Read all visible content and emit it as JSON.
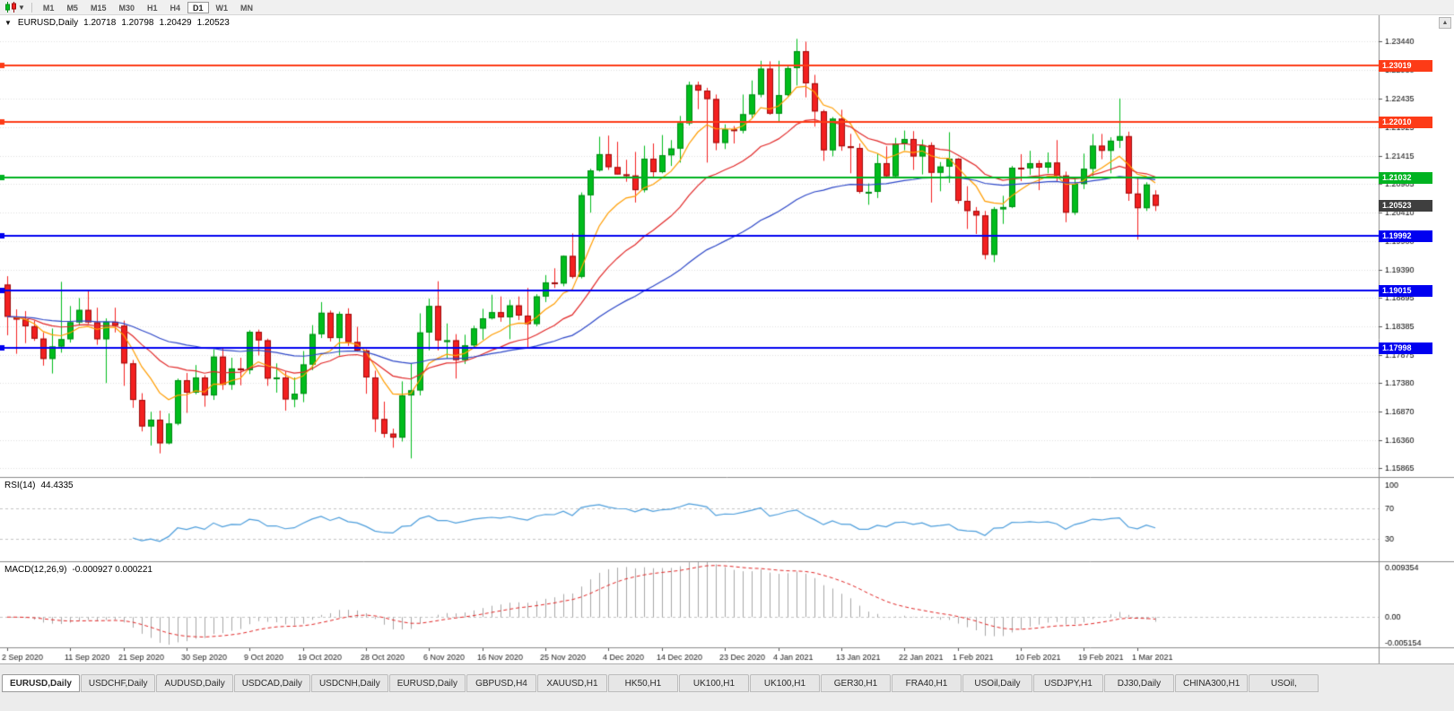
{
  "toolbar": {
    "timeframes": [
      "M1",
      "M5",
      "M15",
      "M30",
      "H1",
      "H4",
      "D1",
      "W1",
      "MN"
    ],
    "active_timeframe": "D1"
  },
  "chart_header": {
    "symbol": "EURUSD,Daily",
    "open": "1.20718",
    "high": "1.20798",
    "low": "1.20429",
    "close": "1.20523"
  },
  "indicators": {
    "rsi": {
      "label": "RSI(14)",
      "value": "44.4335"
    },
    "macd": {
      "label": "MACD(12,26,9)",
      "value": "-0.000927 0.000221"
    }
  },
  "scroll_up_glyph": "▲",
  "tabs": {
    "active_index": 0,
    "items": [
      "EURUSD,Daily",
      "USDCHF,Daily",
      "AUDUSD,Daily",
      "USDCAD,Daily",
      "USDCNH,Daily",
      "EURUSD,Daily",
      "GBPUSD,H4",
      "XAUUSD,H1",
      "HK50,H1",
      "UK100,H1",
      "UK100,H1",
      "GER30,H1",
      "FRA40,H1",
      "USOil,Daily",
      "USDJPY,H1",
      "DJ30,Daily",
      "CHINA300,H1",
      "USOil,"
    ]
  },
  "chart_data": {
    "type": "candlestick",
    "title": "EURUSD,Daily",
    "ylim": [
      1.157,
      1.2391
    ],
    "y_ticks": [
      "1.23440",
      "1.22930",
      "1.22435",
      "1.21925",
      "1.21415",
      "1.20905",
      "1.20410",
      "1.19900",
      "1.19390",
      "1.18895",
      "1.18385",
      "1.17875",
      "1.17380",
      "1.16870",
      "1.16360",
      "1.15865"
    ],
    "x_labels": [
      {
        "i": 0,
        "label": "2 Sep 2020"
      },
      {
        "i": 7,
        "label": "11 Sep 2020"
      },
      {
        "i": 13,
        "label": "21 Sep 2020"
      },
      {
        "i": 20,
        "label": "30 Sep 2020"
      },
      {
        "i": 27,
        "label": "9 Oct 2020"
      },
      {
        "i": 33,
        "label": "19 Oct 2020"
      },
      {
        "i": 40,
        "label": "28 Oct 2020"
      },
      {
        "i": 47,
        "label": "6 Nov 2020"
      },
      {
        "i": 53,
        "label": "16 Nov 2020"
      },
      {
        "i": 60,
        "label": "25 Nov 2020"
      },
      {
        "i": 67,
        "label": "4 Dec 2020"
      },
      {
        "i": 73,
        "label": "14 Dec 2020"
      },
      {
        "i": 80,
        "label": "23 Dec 2020"
      },
      {
        "i": 86,
        "label": "4 Jan 2021"
      },
      {
        "i": 93,
        "label": "13 Jan 2021"
      },
      {
        "i": 100,
        "label": "22 Jan 2021"
      },
      {
        "i": 106,
        "label": "1 Feb 2021"
      },
      {
        "i": 113,
        "label": "10 Feb 2021"
      },
      {
        "i": 120,
        "label": "19 Feb 2021"
      },
      {
        "i": 126,
        "label": "1 Mar 2021"
      }
    ],
    "candle_up": "#00bd1c",
    "candle_down": "#f32020",
    "grid_color": "#e0e0e0",
    "candles": [
      [
        1.1912,
        1.1927,
        1.1822,
        1.1855
      ],
      [
        1.1855,
        1.1868,
        1.1789,
        1.185
      ],
      [
        1.185,
        1.1865,
        1.1808,
        1.1838
      ],
      [
        1.1838,
        1.1848,
        1.1812,
        1.1816
      ],
      [
        1.1816,
        1.1827,
        1.1768,
        1.178
      ],
      [
        1.178,
        1.1834,
        1.1754,
        1.1802
      ],
      [
        1.1802,
        1.1917,
        1.1791,
        1.1815
      ],
      [
        1.1815,
        1.1874,
        1.1809,
        1.1845
      ],
      [
        1.1845,
        1.1888,
        1.1839,
        1.1867
      ],
      [
        1.1867,
        1.19,
        1.1842,
        1.1845
      ],
      [
        1.1845,
        1.1871,
        1.1805,
        1.1815
      ],
      [
        1.1815,
        1.1852,
        1.1737,
        1.1846
      ],
      [
        1.1846,
        1.1871,
        1.1827,
        1.1839
      ],
      [
        1.1839,
        1.1848,
        1.1732,
        1.1772
      ],
      [
        1.1772,
        1.1778,
        1.1693,
        1.1707
      ],
      [
        1.1707,
        1.1719,
        1.1651,
        1.166
      ],
      [
        1.166,
        1.1686,
        1.1626,
        1.1672
      ],
      [
        1.1672,
        1.1688,
        1.1612,
        1.163
      ],
      [
        1.163,
        1.1683,
        1.1628,
        1.1665
      ],
      [
        1.1665,
        1.1745,
        1.1662,
        1.1742
      ],
      [
        1.1742,
        1.1755,
        1.1684,
        1.172
      ],
      [
        1.172,
        1.1769,
        1.1717,
        1.1747
      ],
      [
        1.1747,
        1.1751,
        1.1695,
        1.1715
      ],
      [
        1.1715,
        1.1797,
        1.1707,
        1.1784
      ],
      [
        1.1784,
        1.1798,
        1.1725,
        1.1734
      ],
      [
        1.1734,
        1.1782,
        1.1725,
        1.1763
      ],
      [
        1.1763,
        1.1782,
        1.1733,
        1.176
      ],
      [
        1.176,
        1.1831,
        1.1753,
        1.1828
      ],
      [
        1.1828,
        1.1832,
        1.1786,
        1.1813
      ],
      [
        1.1813,
        1.1816,
        1.1732,
        1.1745
      ],
      [
        1.1745,
        1.1772,
        1.172,
        1.1747
      ],
      [
        1.1747,
        1.1758,
        1.1688,
        1.1708
      ],
      [
        1.1708,
        1.1747,
        1.1694,
        1.1718
      ],
      [
        1.1718,
        1.1794,
        1.1703,
        1.177
      ],
      [
        1.177,
        1.184,
        1.176,
        1.1824
      ],
      [
        1.1824,
        1.1881,
        1.1817,
        1.1862
      ],
      [
        1.1862,
        1.1866,
        1.1811,
        1.1817
      ],
      [
        1.1817,
        1.1864,
        1.1786,
        1.186
      ],
      [
        1.186,
        1.187,
        1.1803,
        1.181
      ],
      [
        1.181,
        1.1837,
        1.1793,
        1.1795
      ],
      [
        1.1795,
        1.1797,
        1.1718,
        1.1747
      ],
      [
        1.1747,
        1.1759,
        1.165,
        1.1673
      ],
      [
        1.1673,
        1.1704,
        1.164,
        1.1647
      ],
      [
        1.1647,
        1.1656,
        1.1622,
        1.164
      ],
      [
        1.164,
        1.174,
        1.1633,
        1.1715
      ],
      [
        1.1715,
        1.1771,
        1.1603,
        1.1724
      ],
      [
        1.1724,
        1.1861,
        1.1715,
        1.1827
      ],
      [
        1.1827,
        1.1887,
        1.1795,
        1.1874
      ],
      [
        1.1874,
        1.1918,
        1.1795,
        1.1813
      ],
      [
        1.1813,
        1.1843,
        1.1781,
        1.1813
      ],
      [
        1.1813,
        1.1824,
        1.1745,
        1.1778
      ],
      [
        1.1778,
        1.1823,
        1.1771,
        1.1804
      ],
      [
        1.1804,
        1.1839,
        1.1799,
        1.1834
      ],
      [
        1.1834,
        1.1869,
        1.1814,
        1.1852
      ],
      [
        1.1852,
        1.1894,
        1.185,
        1.1863
      ],
      [
        1.1863,
        1.1891,
        1.1846,
        1.1854
      ],
      [
        1.1854,
        1.1885,
        1.1815,
        1.1875
      ],
      [
        1.1875,
        1.1891,
        1.1849,
        1.1857
      ],
      [
        1.1857,
        1.1906,
        1.18,
        1.1842
      ],
      [
        1.1842,
        1.1895,
        1.1838,
        1.1891
      ],
      [
        1.1891,
        1.1929,
        1.1881,
        1.1916
      ],
      [
        1.1916,
        1.1941,
        1.1906,
        1.1914
      ],
      [
        1.1914,
        1.1964,
        1.1909,
        1.1963
      ],
      [
        1.1963,
        1.2003,
        1.1923,
        1.1926
      ],
      [
        1.1926,
        1.2076,
        1.1923,
        1.2071
      ],
      [
        1.2071,
        1.2118,
        1.204,
        1.2115
      ],
      [
        1.2115,
        1.2175,
        1.2113,
        1.2144
      ],
      [
        1.2144,
        1.2177,
        1.2116,
        1.2121
      ],
      [
        1.2121,
        1.2166,
        1.2108,
        1.2108
      ],
      [
        1.2108,
        1.2134,
        1.2095,
        1.2106
      ],
      [
        1.2106,
        1.2148,
        1.2058,
        1.208
      ],
      [
        1.208,
        1.2159,
        1.2076,
        1.2136
      ],
      [
        1.2136,
        1.2163,
        1.2103,
        1.2112
      ],
      [
        1.2112,
        1.2178,
        1.211,
        1.2142
      ],
      [
        1.2142,
        1.2169,
        1.2123,
        1.2154
      ],
      [
        1.2154,
        1.2212,
        1.2129,
        1.2199
      ],
      [
        1.2199,
        1.2273,
        1.2195,
        1.2267
      ],
      [
        1.2267,
        1.2273,
        1.2224,
        1.2257
      ],
      [
        1.2257,
        1.2262,
        1.2129,
        1.2242
      ],
      [
        1.2242,
        1.225,
        1.2151,
        1.2164
      ],
      [
        1.2164,
        1.2197,
        1.2153,
        1.2188
      ],
      [
        1.2188,
        1.2194,
        1.2163,
        1.2186
      ],
      [
        1.2186,
        1.225,
        1.2181,
        1.2215
      ],
      [
        1.2215,
        1.2275,
        1.2208,
        1.225
      ],
      [
        1.225,
        1.231,
        1.2245,
        1.2296
      ],
      [
        1.2296,
        1.2309,
        1.2214,
        1.2216
      ],
      [
        1.2216,
        1.231,
        1.22,
        1.2249
      ],
      [
        1.2249,
        1.2303,
        1.2247,
        1.2297
      ],
      [
        1.2297,
        1.2349,
        1.2266,
        1.2327
      ],
      [
        1.2327,
        1.2344,
        1.2245,
        1.227
      ],
      [
        1.227,
        1.2285,
        1.2193,
        1.222
      ],
      [
        1.222,
        1.2223,
        1.2132,
        1.2151
      ],
      [
        1.2151,
        1.221,
        1.214,
        1.2207
      ],
      [
        1.2207,
        1.2223,
        1.215,
        1.2158
      ],
      [
        1.2158,
        1.218,
        1.211,
        1.2155
      ],
      [
        1.2155,
        1.2163,
        1.2074,
        1.2077
      ],
      [
        1.2077,
        1.2092,
        1.2054,
        1.2077
      ],
      [
        1.2077,
        1.2145,
        1.2066,
        1.2128
      ],
      [
        1.2128,
        1.2158,
        1.2102,
        1.2105
      ],
      [
        1.2105,
        1.2173,
        1.2104,
        1.2163
      ],
      [
        1.2163,
        1.2186,
        1.2151,
        1.2171
      ],
      [
        1.2171,
        1.2185,
        1.2116,
        1.214
      ],
      [
        1.214,
        1.217,
        1.2108,
        1.216
      ],
      [
        1.216,
        1.2165,
        1.2058,
        1.2111
      ],
      [
        1.2111,
        1.213,
        1.2078,
        1.2122
      ],
      [
        1.2122,
        1.2183,
        1.2093,
        1.2136
      ],
      [
        1.2136,
        1.2137,
        1.2056,
        1.2061
      ],
      [
        1.2061,
        1.2087,
        1.2011,
        1.2043
      ],
      [
        1.2043,
        1.205,
        1.2002,
        1.2035
      ],
      [
        1.2035,
        1.2043,
        1.1957,
        1.1965
      ],
      [
        1.1965,
        1.205,
        1.1952,
        1.2046
      ],
      [
        1.2046,
        1.207,
        1.202,
        1.205
      ],
      [
        1.205,
        1.2123,
        1.2048,
        1.212
      ],
      [
        1.212,
        1.2144,
        1.2096,
        1.2119
      ],
      [
        1.2119,
        1.215,
        1.2107,
        1.2128
      ],
      [
        1.2128,
        1.2133,
        1.208,
        1.212
      ],
      [
        1.212,
        1.2147,
        1.211,
        1.2129
      ],
      [
        1.2129,
        1.2169,
        1.2095,
        1.2106
      ],
      [
        1.2106,
        1.2113,
        1.2023,
        1.204
      ],
      [
        1.204,
        1.2101,
        1.2036,
        1.2091
      ],
      [
        1.2091,
        1.2145,
        1.2082,
        1.2118
      ],
      [
        1.2118,
        1.218,
        1.2105,
        1.2159
      ],
      [
        1.2159,
        1.218,
        1.2135,
        1.215
      ],
      [
        1.215,
        1.2174,
        1.211,
        1.2168
      ],
      [
        1.2168,
        1.2243,
        1.2155,
        1.2176
      ],
      [
        1.2176,
        1.2184,
        1.2061,
        1.2074
      ],
      [
        1.2074,
        1.2101,
        1.1992,
        1.2048
      ],
      [
        1.2048,
        1.2094,
        1.2043,
        1.209
      ],
      [
        1.20718,
        1.20798,
        1.20429,
        1.20523
      ]
    ],
    "overlays": [
      {
        "name": "ma-fast",
        "period": 8,
        "color": "#ff9d00"
      },
      {
        "name": "ma-mid",
        "period": 20,
        "color": "#e22828"
      },
      {
        "name": "ma-slow",
        "period": 50,
        "color": "#2d47c8"
      }
    ],
    "levels": [
      {
        "price": 1.23019,
        "label": "1.23019",
        "color": "#fd3b17"
      },
      {
        "price": 1.2201,
        "label": "1.22010",
        "color": "#fd3b17"
      },
      {
        "price": 1.21032,
        "label": "1.21032",
        "color": "#00b321"
      },
      {
        "price": 1.19992,
        "label": "1.19992",
        "color": "#0000f0"
      },
      {
        "price": 1.19015,
        "label": "1.19015",
        "color": "#0000f0"
      },
      {
        "price": 1.17998,
        "label": "1.17998",
        "color": "#0000f0"
      }
    ],
    "current": {
      "price": 1.20523,
      "label": "1.20523",
      "color": "#3f3f3f"
    },
    "rsi": {
      "period": 14,
      "color": "#4d9edc",
      "display_max": 110,
      "levels": [
        {
          "value": 100,
          "label": "100",
          "line": false
        },
        {
          "value": 70,
          "label": "70",
          "line": true
        },
        {
          "value": 30,
          "label": "30",
          "line": true
        }
      ]
    },
    "macd": {
      "fast": 12,
      "slow": 26,
      "signal_period": 9,
      "max": 0.009354,
      "min": -0.005154,
      "labels": {
        "top": "0.009354",
        "zero": "0.00",
        "bottom": "-0.005154"
      },
      "hist_color": "#a8a8a8",
      "signal_color": "#e22828"
    }
  }
}
